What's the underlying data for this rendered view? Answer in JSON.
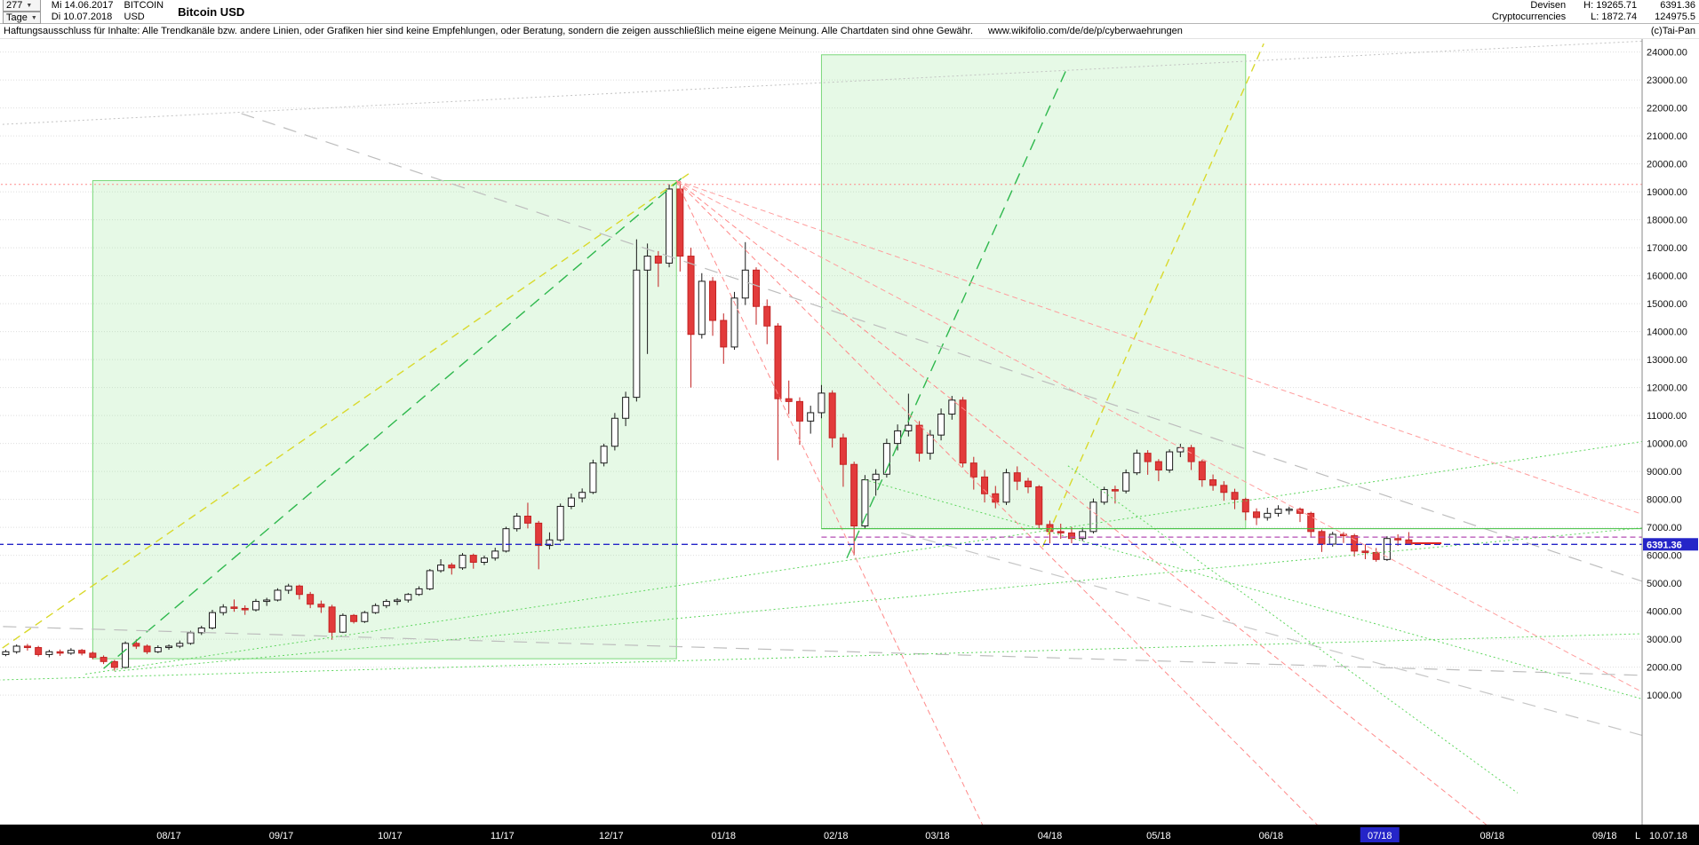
{
  "header": {
    "bars_count": "277",
    "timeframe": "Tage",
    "date_from": "Mi 14.06.2017",
    "date_to": "Di 10.07.2018",
    "symbol_line1": "BITCOIN",
    "symbol_line2": "USD",
    "title": "Bitcoin USD",
    "category_line1": "Devisen",
    "category_line2": "Cryptocurrencies",
    "high_label": "H: 19265.71",
    "low_label": "L: 1872.74",
    "last_price": "6391.36",
    "secondary_value": "124975.5"
  },
  "disclaimer": {
    "text": "Haftungsausschluss für Inhalte: Alle Trendkanäle bzw. andere Linien, oder Grafiken hier sind keine Empfehlungen, oder Beratung, sondern die zeigen ausschließlich meine eigene Meinung. Alle Chartdaten sind ohne Gewähr.",
    "url": "www.wikifolio.com/de/de/p/cyberwaehrungen",
    "copyright": "(c)Tai-Pan"
  },
  "footer": {
    "last_label": "L",
    "last_date": "10.07.18"
  },
  "chart_data": {
    "type": "candlestick",
    "title": "Bitcoin USD",
    "timeframe": "Tage",
    "bars": 277,
    "start_date": "14.06.2017",
    "end_date": "10.07.2018",
    "high": 19265.71,
    "low": 1872.74,
    "last": 6391.36,
    "grid": "horizontal-dotted",
    "y_axis_range": [
      1000,
      24000
    ],
    "y_ticks": [
      24000,
      23000,
      22000,
      21000,
      20000,
      19000,
      18000,
      17000,
      16000,
      15000,
      14000,
      13000,
      12000,
      11000,
      10000,
      9000,
      8000,
      7000,
      6000,
      5000,
      4000,
      3000,
      2000,
      1000
    ],
    "x_ticks": [
      {
        "label": "08/17",
        "day": 48
      },
      {
        "label": "09/17",
        "day": 79
      },
      {
        "label": "10/17",
        "day": 109
      },
      {
        "label": "11/17",
        "day": 140
      },
      {
        "label": "12/17",
        "day": 170
      },
      {
        "label": "01/18",
        "day": 201
      },
      {
        "label": "02/18",
        "day": 232
      },
      {
        "label": "03/18",
        "day": 260
      },
      {
        "label": "04/18",
        "day": 291
      },
      {
        "label": "05/18",
        "day": 321
      },
      {
        "label": "06/18",
        "day": 352
      },
      {
        "label": "07/18",
        "day": 382,
        "highlight": true
      },
      {
        "label": "08/18",
        "day": 413
      },
      {
        "label": "09/18",
        "day": 444
      }
    ],
    "marker": {
      "price": 6391.36,
      "label": "6391.36"
    },
    "colors": {
      "up_fill": "#ffffff",
      "up_stroke": "#1a1a1a",
      "down_fill": "#e23b3b",
      "down_stroke": "#c32222",
      "marker_blue": "#2525c8",
      "strip_bg": "#000000",
      "grid": "#dedede"
    },
    "candle_interval_days": 3,
    "candles": [
      [
        2600,
        2690,
        2330,
        2450
      ],
      [
        2450,
        2620,
        2390,
        2550
      ],
      [
        2550,
        2810,
        2480,
        2750
      ],
      [
        2750,
        2830,
        2590,
        2700
      ],
      [
        2700,
        2760,
        2380,
        2450
      ],
      [
        2450,
        2620,
        2350,
        2550
      ],
      [
        2550,
        2630,
        2400,
        2500
      ],
      [
        2500,
        2680,
        2440,
        2600
      ],
      [
        2600,
        2650,
        2420,
        2500
      ],
      [
        2500,
        2560,
        2280,
        2350
      ],
      [
        2350,
        2420,
        2110,
        2200
      ],
      [
        2200,
        2260,
        1872,
        1990
      ],
      [
        1990,
        2920,
        1950,
        2850
      ],
      [
        2850,
        2990,
        2650,
        2750
      ],
      [
        2750,
        2810,
        2470,
        2550
      ],
      [
        2550,
        2780,
        2500,
        2700
      ],
      [
        2700,
        2810,
        2620,
        2750
      ],
      [
        2750,
        2950,
        2680,
        2850
      ],
      [
        2850,
        3300,
        2800,
        3230
      ],
      [
        3230,
        3480,
        3150,
        3400
      ],
      [
        3400,
        4050,
        3350,
        3950
      ],
      [
        3950,
        4250,
        3850,
        4150
      ],
      [
        4150,
        4420,
        3980,
        4100
      ],
      [
        4100,
        4210,
        3870,
        4050
      ],
      [
        4050,
        4440,
        3990,
        4350
      ],
      [
        4350,
        4480,
        4190,
        4400
      ],
      [
        4400,
        4820,
        4350,
        4750
      ],
      [
        4750,
        4980,
        4620,
        4900
      ],
      [
        4900,
        4950,
        4420,
        4600
      ],
      [
        4600,
        4690,
        4110,
        4250
      ],
      [
        4250,
        4380,
        3940,
        4150
      ],
      [
        4150,
        4230,
        2980,
        3250
      ],
      [
        3250,
        3920,
        3220,
        3850
      ],
      [
        3850,
        3900,
        3560,
        3630
      ],
      [
        3630,
        4010,
        3580,
        3950
      ],
      [
        3950,
        4280,
        3900,
        4200
      ],
      [
        4200,
        4430,
        4110,
        4350
      ],
      [
        4350,
        4470,
        4220,
        4400
      ],
      [
        4400,
        4650,
        4310,
        4600
      ],
      [
        4600,
        4890,
        4550,
        4800
      ],
      [
        4800,
        5510,
        4750,
        5450
      ],
      [
        5450,
        5860,
        5380,
        5650
      ],
      [
        5650,
        5730,
        5310,
        5550
      ],
      [
        5550,
        6080,
        5480,
        6000
      ],
      [
        6000,
        6060,
        5520,
        5750
      ],
      [
        5750,
        5990,
        5650,
        5900
      ],
      [
        5900,
        6270,
        5810,
        6150
      ],
      [
        6150,
        7020,
        6100,
        6950
      ],
      [
        6950,
        7510,
        6850,
        7400
      ],
      [
        7400,
        7880,
        6960,
        7150
      ],
      [
        7150,
        7230,
        5500,
        6350
      ],
      [
        6350,
        6820,
        6210,
        6550
      ],
      [
        6550,
        7850,
        6480,
        7750
      ],
      [
        7750,
        8210,
        7650,
        8050
      ],
      [
        8050,
        8390,
        7890,
        8250
      ],
      [
        8250,
        9420,
        8190,
        9300
      ],
      [
        9300,
        9990,
        9180,
        9900
      ],
      [
        9900,
        11090,
        9750,
        10900
      ],
      [
        10900,
        11850,
        10620,
        11650
      ],
      [
        11650,
        17300,
        11500,
        16200
      ],
      [
        16200,
        17150,
        13200,
        16700
      ],
      [
        16700,
        16880,
        15600,
        16450
      ],
      [
        16450,
        19265,
        16300,
        19100
      ],
      [
        19100,
        19390,
        16150,
        16700
      ],
      [
        16700,
        17000,
        12000,
        13900
      ],
      [
        13900,
        16090,
        13750,
        15800
      ],
      [
        15800,
        15950,
        13850,
        14400
      ],
      [
        14400,
        14650,
        12850,
        13450
      ],
      [
        13450,
        15420,
        13350,
        15200
      ],
      [
        15200,
        17200,
        14950,
        16200
      ],
      [
        16200,
        16300,
        14250,
        14900
      ],
      [
        14900,
        15150,
        13550,
        14200
      ],
      [
        14200,
        14300,
        9400,
        11600
      ],
      [
        11600,
        12250,
        11050,
        11500
      ],
      [
        11500,
        11650,
        9950,
        10800
      ],
      [
        10800,
        11350,
        10350,
        11100
      ],
      [
        11100,
        12090,
        10900,
        11800
      ],
      [
        11800,
        11900,
        9850,
        10200
      ],
      [
        10200,
        10350,
        8450,
        9250
      ],
      [
        9250,
        9350,
        6000,
        7050
      ],
      [
        7050,
        8870,
        6950,
        8700
      ],
      [
        8700,
        9080,
        8130,
        8900
      ],
      [
        8900,
        10170,
        8780,
        10000
      ],
      [
        10000,
        10680,
        9750,
        10450
      ],
      [
        10450,
        11780,
        10250,
        10650
      ],
      [
        10650,
        10800,
        9350,
        9650
      ],
      [
        9650,
        10480,
        9420,
        10300
      ],
      [
        10300,
        11250,
        10110,
        11050
      ],
      [
        11050,
        11700,
        10850,
        11550
      ],
      [
        11550,
        11660,
        9150,
        9300
      ],
      [
        9300,
        9520,
        8350,
        8800
      ],
      [
        8800,
        9050,
        7890,
        8200
      ],
      [
        8200,
        8480,
        7680,
        7900
      ],
      [
        7900,
        9090,
        7800,
        8950
      ],
      [
        8950,
        9180,
        8330,
        8650
      ],
      [
        8650,
        8770,
        8220,
        8450
      ],
      [
        8450,
        8510,
        6936,
        7100
      ],
      [
        7100,
        7240,
        6425,
        6850
      ],
      [
        6850,
        7130,
        6590,
        6800
      ],
      [
        6800,
        7010,
        6430,
        6600
      ],
      [
        6600,
        6990,
        6510,
        6850
      ],
      [
        6850,
        8030,
        6780,
        7900
      ],
      [
        7900,
        8450,
        7810,
        8350
      ],
      [
        8350,
        8490,
        7850,
        8300
      ],
      [
        8300,
        9070,
        8210,
        8950
      ],
      [
        8950,
        9780,
        8870,
        9650
      ],
      [
        9650,
        9760,
        8880,
        9350
      ],
      [
        9350,
        9440,
        8650,
        9050
      ],
      [
        9050,
        9790,
        8950,
        9700
      ],
      [
        9700,
        9990,
        9510,
        9850
      ],
      [
        9850,
        9950,
        9050,
        9350
      ],
      [
        9350,
        9420,
        8450,
        8700
      ],
      [
        8700,
        8890,
        8310,
        8500
      ],
      [
        8500,
        8650,
        7950,
        8250
      ],
      [
        8250,
        8380,
        7650,
        8000
      ],
      [
        8000,
        8060,
        7250,
        7550
      ],
      [
        7550,
        7680,
        7080,
        7350
      ],
      [
        7350,
        7700,
        7240,
        7500
      ],
      [
        7500,
        7790,
        7380,
        7650
      ],
      [
        7650,
        7740,
        7460,
        7650
      ],
      [
        7650,
        7710,
        7190,
        7500
      ],
      [
        7500,
        7560,
        6630,
        6850
      ],
      [
        6850,
        6920,
        6120,
        6400
      ],
      [
        6400,
        6840,
        6310,
        6750
      ],
      [
        6750,
        6830,
        6440,
        6700
      ],
      [
        6700,
        6770,
        5950,
        6150
      ],
      [
        6150,
        6390,
        5860,
        6100
      ],
      [
        6100,
        6260,
        5770,
        5850
      ],
      [
        5850,
        6680,
        5800,
        6600
      ],
      [
        6600,
        6750,
        6340,
        6550
      ],
      [
        6550,
        6830,
        6380,
        6391.36
      ]
    ],
    "overlays": [
      {
        "name": "rally-channel-box",
        "kind": "rect",
        "d1": 27,
        "p1": 2300,
        "d2": 188,
        "p2": 19400,
        "stroke": "#7bd87b",
        "fill": "rgba(160,232,160,0.26)"
      },
      {
        "name": "recovery-projection-box",
        "kind": "rect",
        "d1": 228,
        "p1": 6950,
        "d2": 345,
        "p2": 23900,
        "stroke": "#7bd87b",
        "fill": "rgba(160,232,160,0.26)"
      },
      {
        "name": "ath-resistance-line",
        "kind": "line",
        "d1": -2,
        "p1": 19265.71,
        "d2": 460,
        "p2": 19265.71,
        "color": "#ff8a8a",
        "dash": "2,3",
        "w": 1
      },
      {
        "name": "yellow-uptrend-2017",
        "kind": "line",
        "d1": -10,
        "p1": 1600,
        "d2": 192,
        "p2": 19700,
        "color": "#d9d92b",
        "dash": "9,6",
        "w": 1.4
      },
      {
        "name": "yellow-uptrend-2018",
        "kind": "line",
        "d1": 289,
        "p1": 6300,
        "d2": 350,
        "p2": 24300,
        "color": "#d9d92b",
        "dash": "9,6",
        "w": 1.4
      },
      {
        "name": "green-uptrend-2017",
        "kind": "line",
        "d1": 30,
        "p1": 1950,
        "d2": 190,
        "p2": 19550,
        "color": "#2eb84d",
        "dash": "13,8",
        "w": 1.4
      },
      {
        "name": "green-uptrend-2018",
        "kind": "line",
        "d1": 235,
        "p1": 5900,
        "d2": 296,
        "p2": 23500,
        "color": "#2eb84d",
        "dash": "13,8",
        "w": 1.4
      },
      {
        "name": "fan-line-1",
        "kind": "line",
        "d1": 188,
        "p1": 19400,
        "d2": 273,
        "p2": -3800,
        "color": "#ff8a8a",
        "dash": "6,4",
        "w": 1
      },
      {
        "name": "fan-line-2",
        "kind": "line",
        "d1": 188,
        "p1": 19400,
        "d2": 366,
        "p2": -3800,
        "color": "#ff8a8a",
        "dash": "6,4",
        "w": 1
      },
      {
        "name": "fan-line-3",
        "kind": "line",
        "d1": 188,
        "p1": 19400,
        "d2": 412,
        "p2": -3700,
        "color": "#ff8a8a",
        "dash": "6,4",
        "w": 1
      },
      {
        "name": "fan-line-4",
        "kind": "line",
        "d1": 188,
        "p1": 19400,
        "d2": 460,
        "p2": 725,
        "color": "#ff9d9d",
        "dash": "6,4",
        "w": 1
      },
      {
        "name": "fan-line-5",
        "kind": "line",
        "d1": 188,
        "p1": 19400,
        "d2": 460,
        "p2": 7215,
        "color": "#ff9d9d",
        "dash": "6,4",
        "w": 1
      },
      {
        "name": "gray-dotted-resistance",
        "kind": "line",
        "d1": -15,
        "p1": 21300,
        "d2": 456,
        "p2": 24400,
        "color": "#c2c2c2",
        "dash": "2,3",
        "w": 1
      },
      {
        "name": "gray-downtrend-1",
        "kind": "line",
        "d1": 68,
        "p1": 21800,
        "d2": 456,
        "p2": 5000,
        "color": "#bdbdbd",
        "dash": "15,10",
        "w": 1.2
      },
      {
        "name": "gray-baseline",
        "kind": "line",
        "d1": -10,
        "p1": 3500,
        "d2": 456,
        "p2": 1700,
        "color": "#bdbdbd",
        "dash": "15,10",
        "w": 1.2
      },
      {
        "name": "gray-downtrend-2",
        "kind": "line",
        "d1": 250,
        "p1": 6800,
        "d2": 456,
        "p2": -500,
        "color": "#c6c6c6",
        "dash": "15,10",
        "w": 1.2
      },
      {
        "name": "green-dotted-support-1",
        "kind": "line",
        "d1": 25,
        "p1": 1750,
        "d2": 456,
        "p2": 10100,
        "color": "#5fd65f",
        "dash": "2,3",
        "w": 1
      },
      {
        "name": "green-dotted-support-2",
        "kind": "line",
        "d1": 33,
        "p1": 1850,
        "d2": 456,
        "p2": 7000,
        "color": "#5fd65f",
        "dash": "2,3",
        "w": 1
      },
      {
        "name": "green-dotted-support-3",
        "kind": "line",
        "d1": -10,
        "p1": 1500,
        "d2": 456,
        "p2": 3200,
        "color": "#5fd65f",
        "dash": "2,3",
        "w": 1
      },
      {
        "name": "green-dotted-fall-1",
        "kind": "line",
        "d1": 240,
        "p1": 8700,
        "d2": 456,
        "p2": 800,
        "color": "#5fd65f",
        "dash": "2,3",
        "w": 1
      },
      {
        "name": "green-dotted-fall-2",
        "kind": "line",
        "d1": 296,
        "p1": 9200,
        "d2": 420,
        "p2": -2500,
        "color": "#5fd65f",
        "dash": "2,3",
        "w": 1
      },
      {
        "name": "violet-level-line",
        "kind": "line",
        "d1": 228,
        "p1": 6650,
        "d2": 460,
        "p2": 6650,
        "color": "#b44cb4",
        "dash": "6,4",
        "w": 1.2
      },
      {
        "name": "green-horizontal-support",
        "kind": "line",
        "d1": 228,
        "p1": 6950,
        "d2": 460,
        "p2": 6950,
        "color": "#3fbf3f",
        "dash": "",
        "w": 1
      },
      {
        "name": "last-price-line",
        "kind": "line",
        "d1": -2,
        "p1": 6391.36,
        "d2": 460,
        "p2": 6391.36,
        "color": "#2525c8",
        "dash": "7,4",
        "w": 1.4
      },
      {
        "name": "last-price-tick",
        "kind": "line",
        "d1": 391,
        "p1": 6430,
        "d2": 399,
        "p2": 6430,
        "color": "#dd2222",
        "dash": "",
        "w": 2
      }
    ]
  }
}
